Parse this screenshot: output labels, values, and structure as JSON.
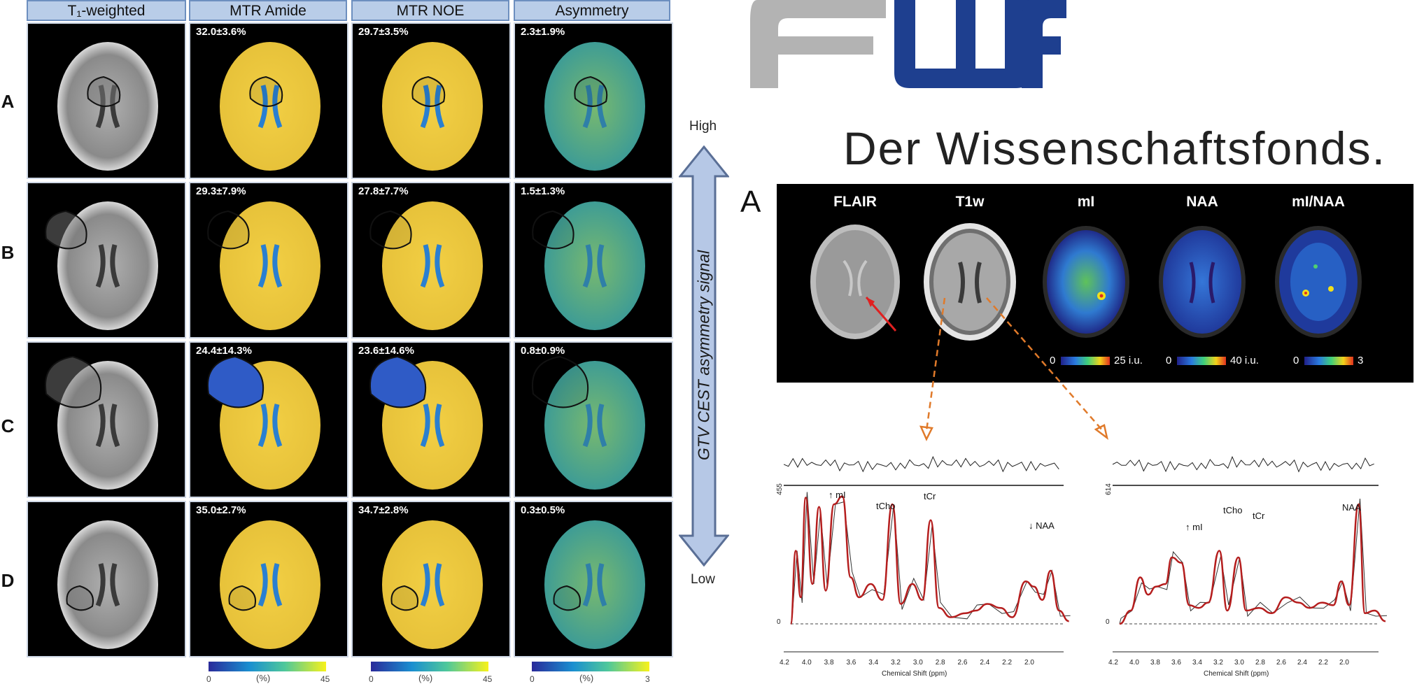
{
  "left_figure": {
    "column_headers": [
      "T₁-weighted",
      "MTR Amide",
      "MTR NOE",
      "Asymmetry"
    ],
    "row_labels": [
      "A",
      "B",
      "C",
      "D"
    ],
    "values": [
      [
        "32.0±3.6%",
        "29.7±3.5%",
        "2.3±1.9%"
      ],
      [
        "29.3±7.9%",
        "27.8±7.7%",
        "1.5±1.3%"
      ],
      [
        "24.4±14.3%",
        "23.6±14.6%",
        "0.8±0.9%"
      ],
      [
        "35.0±2.7%",
        "34.7±2.8%",
        "0.3±0.5%"
      ]
    ],
    "colorbars": [
      {
        "min": "0",
        "unit": "(%)",
        "max": "45"
      },
      {
        "min": "0",
        "unit": "(%)",
        "max": "45"
      },
      {
        "min": "0",
        "unit": "(%)",
        "max": "3"
      }
    ]
  },
  "scale_arrow": {
    "high": "High",
    "low": "Low",
    "label": "GTV CEST asymmetry signal"
  },
  "logo": {
    "text": "FWF",
    "tagline": "Der Wissenschaftsfonds.",
    "colors": {
      "f": "#b3b3b3",
      "w": "#1e3f8f",
      "f2": "#1e3f8f"
    }
  },
  "mrs_panel": {
    "panel_label": "A",
    "headers": [
      "FLAIR",
      "T1w",
      "mI",
      "NAA",
      "mI/NAA"
    ],
    "colorbars": [
      {
        "min": "0",
        "max": "25 i.u."
      },
      {
        "min": "0",
        "max": "40 i.u."
      },
      {
        "min": "0",
        "max": "3"
      }
    ]
  },
  "spectra": [
    {
      "scale": "455",
      "zero": "0",
      "peaks": [
        "↑ mI",
        "tCho",
        "tCr",
        "↓ NAA"
      ],
      "x_ticks": [
        "4.2",
        "4.0",
        "3.8",
        "3.6",
        "3.4",
        "3.2",
        "3.0",
        "2.8",
        "2.6",
        "2.4",
        "2.2",
        "2.0"
      ],
      "xlabel": "Chemical Shift (ppm)"
    },
    {
      "scale": "614",
      "zero": "0",
      "peaks": [
        "↑ mI",
        "tCho",
        "tCr",
        "NAA"
      ],
      "x_ticks": [
        "4.2",
        "4.0",
        "3.8",
        "3.6",
        "3.4",
        "3.2",
        "3.0",
        "2.8",
        "2.6",
        "2.4",
        "2.2",
        "2.0"
      ],
      "xlabel": "Chemical Shift (ppm)"
    }
  ]
}
